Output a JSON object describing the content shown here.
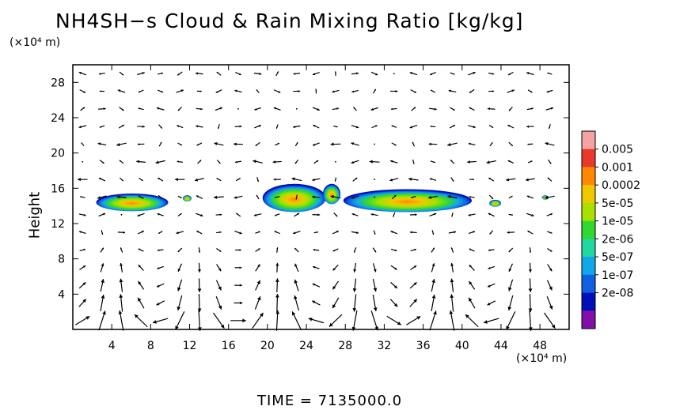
{
  "chart_data": {
    "type": "heatmap",
    "title": "NH4SH−s Cloud & Rain Mixing Ratio [kg/kg]",
    "xlabel": "",
    "x_unit": "(×10⁴ m)",
    "ylabel": "Height",
    "y_unit": "(×10⁴ m)",
    "xlim": [
      0,
      51
    ],
    "ylim": [
      0,
      30
    ],
    "x_ticks": [
      4,
      8,
      12,
      16,
      20,
      24,
      28,
      32,
      36,
      40,
      44,
      48
    ],
    "y_ticks": [
      4,
      8,
      12,
      16,
      20,
      24,
      28
    ],
    "time_label": "TIME = 7135000.0",
    "colorbar": {
      "labels": [
        "0.005",
        "0.001",
        "0.0002",
        "5e-05",
        "1e-05",
        "2e-06",
        "5e-07",
        "1e-07",
        "2e-08"
      ],
      "colors": [
        "#f4a3a3",
        "#e83a2a",
        "#ff8800",
        "#f0c800",
        "#a8e000",
        "#30d830",
        "#20d8a0",
        "#10a8e8",
        "#1060e0",
        "#0010b8",
        "#8010a8"
      ]
    },
    "cloud_regions": [
      {
        "x": 2.4,
        "y": 13.4,
        "x2": 9.8,
        "y2": 15.4
      },
      {
        "x": 11.3,
        "y": 14.5,
        "x2": 12.2,
        "y2": 15.2
      },
      {
        "x": 19.5,
        "y": 13.3,
        "x2": 26.0,
        "y2": 16.5
      },
      {
        "x": 25.7,
        "y": 14.2,
        "x2": 27.5,
        "y2": 16.5
      },
      {
        "x": 27.8,
        "y": 13.3,
        "x2": 41.0,
        "y2": 15.9
      },
      {
        "x": 42.8,
        "y": 13.9,
        "x2": 44.0,
        "y2": 14.7
      },
      {
        "x": 48.2,
        "y": 14.7,
        "x2": 48.9,
        "y2": 15.2
      }
    ]
  }
}
